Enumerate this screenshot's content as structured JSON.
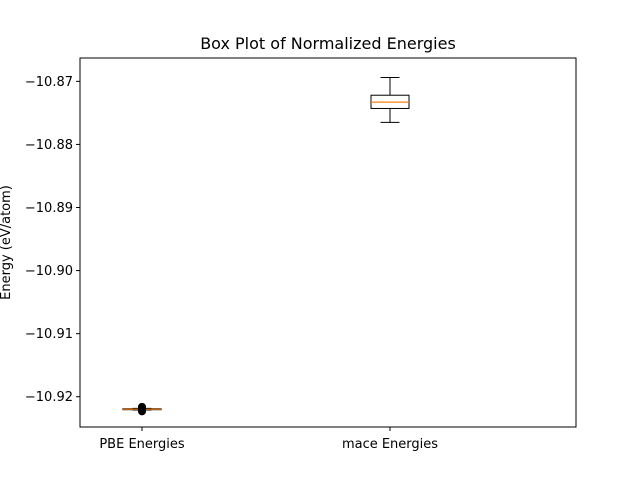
{
  "chart_data": {
    "type": "box",
    "title": "Box Plot of Normalized Energies",
    "xlabel": "",
    "ylabel": "Energy (eV/atom)",
    "ylim": [
      -10.9248,
      -10.8663
    ],
    "yticks": [
      -10.87,
      -10.88,
      -10.89,
      -10.9,
      -10.91,
      -10.92
    ],
    "ytick_labels": [
      "−10.87",
      "−10.88",
      "−10.89",
      "−10.90",
      "−10.91",
      "−10.92"
    ],
    "categories": [
      "PBE Energies",
      "mace Energies"
    ],
    "boxes": [
      {
        "category": "PBE Energies",
        "whisker_low": -10.9221,
        "q1": -10.92205,
        "median": -10.92198,
        "q3": -10.9219,
        "whisker_high": -10.92185,
        "outliers": [
          -10.9216,
          -10.9217,
          -10.92178,
          -10.92215,
          -10.92222,
          -10.92232
        ]
      },
      {
        "category": "mace Energies",
        "whisker_low": -10.8765,
        "q1": -10.8743,
        "median": -10.8733,
        "q3": -10.8722,
        "whisker_high": -10.8694,
        "outliers": []
      }
    ],
    "colors": {
      "box": "#000000",
      "median": "#ff7f0e",
      "outlier": "#000000"
    },
    "grid": false,
    "legend": "none"
  }
}
